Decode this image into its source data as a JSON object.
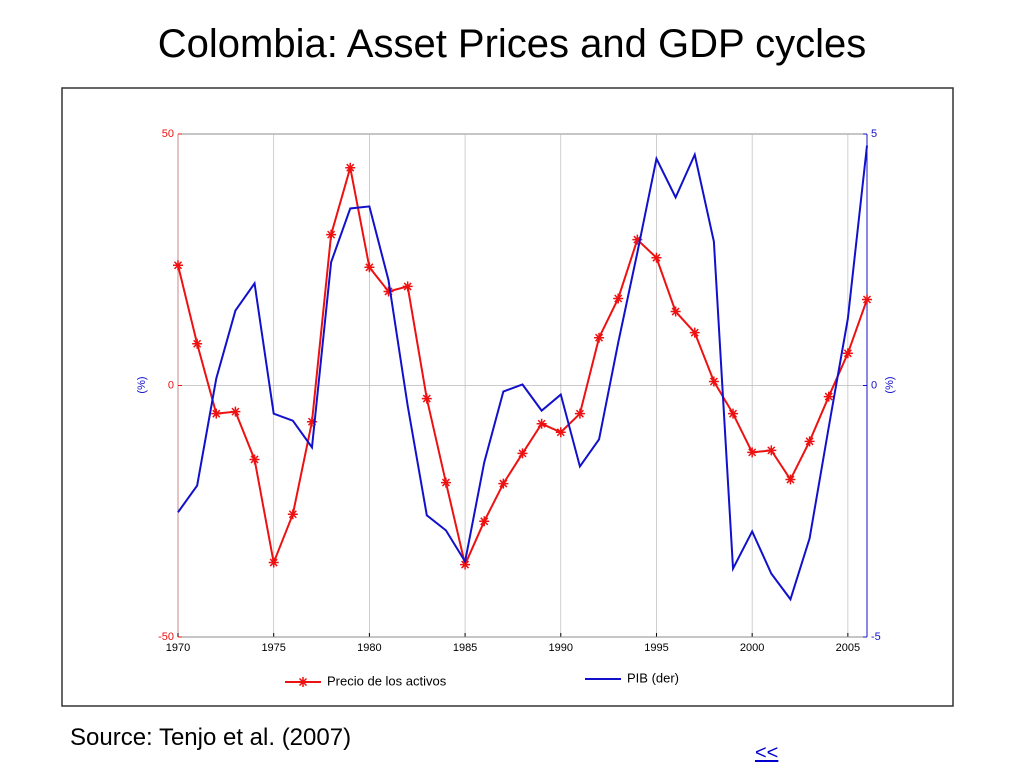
{
  "slide_title": "Colombia: Asset Prices and GDP cycles",
  "source": "Source: Tenjo et al. (2007)",
  "nav_link": "<<",
  "chart_data": {
    "type": "line",
    "x": [
      1970,
      1971,
      1972,
      1973,
      1974,
      1975,
      1976,
      1977,
      1978,
      1979,
      1980,
      1981,
      1982,
      1983,
      1984,
      1985,
      1986,
      1987,
      1988,
      1989,
      1990,
      1991,
      1992,
      1993,
      1994,
      1995,
      1996,
      1997,
      1998,
      1999,
      2000,
      2001,
      2002,
      2003,
      2004,
      2005,
      2006
    ],
    "xlim": [
      1970,
      2006
    ],
    "xticks": [
      1970,
      1975,
      1980,
      1985,
      1990,
      1995,
      2000,
      2005
    ],
    "ylim": [
      -50,
      50
    ],
    "yticks": [
      -50,
      0,
      50
    ],
    "y_label": "(%)",
    "y2lim": [
      -5,
      5
    ],
    "y2ticks": [
      -5,
      0,
      5
    ],
    "y2_label": "(%)",
    "grid": true,
    "series": [
      {
        "name": "Precio de los activos",
        "color": "#ee1111",
        "marker": "star",
        "values": [
          23.9,
          8.3,
          -5.6,
          -5.2,
          -14.7,
          -35.2,
          -25.6,
          -7.2,
          30.0,
          43.3,
          23.5,
          18.7,
          19.7,
          -2.6,
          -19.3,
          -35.6,
          -27.0,
          -19.5,
          -13.5,
          -7.6,
          -9.3,
          -5.6,
          9.5,
          17.3,
          29.0,
          25.4,
          14.7,
          10.5,
          0.8,
          -5.6,
          -13.3,
          -12.9,
          -18.7,
          -11.1,
          -2.2,
          6.4,
          17.1
        ]
      },
      {
        "name": "PIB (der)",
        "color": "#1111cc",
        "axis": "y2",
        "values": [
          -2.52,
          -1.99,
          0.14,
          1.49,
          2.03,
          -0.56,
          -0.7,
          -1.23,
          2.45,
          3.52,
          3.56,
          2.09,
          -0.4,
          -2.58,
          -2.88,
          -3.5,
          -1.53,
          -0.12,
          0.02,
          -0.5,
          -0.18,
          -1.61,
          -1.07,
          0.85,
          2.64,
          4.51,
          3.74,
          4.59,
          2.86,
          -3.64,
          -2.9,
          -3.74,
          -4.25,
          -3.04,
          -0.83,
          1.33,
          4.77
        ]
      }
    ]
  }
}
